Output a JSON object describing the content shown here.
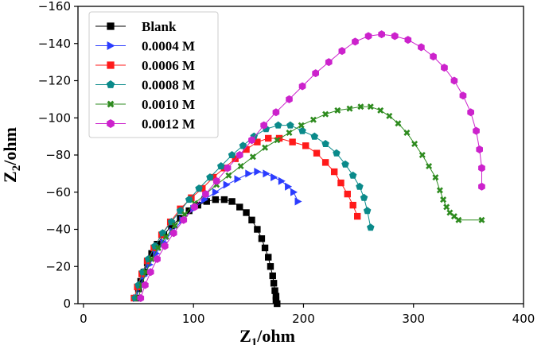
{
  "chart_data": {
    "type": "scatter",
    "title": "",
    "xlabel": "Z",
    "xlabel_sub": "1",
    "xlabel_unit": "/ohm",
    "ylabel": "Z",
    "ylabel_sub": "2",
    "ylabel_unit": "/ohm",
    "xlim": [
      -5,
      400
    ],
    "ylim": [
      0,
      -160
    ],
    "xticks": [
      0,
      100,
      200,
      300,
      400
    ],
    "xtick_labels": [
      "0",
      "100",
      "200",
      "300",
      "400"
    ],
    "yticks": [
      0,
      -20,
      -40,
      -60,
      -80,
      -100,
      -120,
      -140,
      -160
    ],
    "ytick_labels": [
      "0",
      "−20",
      "−40",
      "−60",
      "−80",
      "−100",
      "−120",
      "−140",
      "−160"
    ],
    "grid": false,
    "legend_position": "top-left",
    "series": [
      {
        "name": "Blank",
        "color": "#000000",
        "marker": "square",
        "x": [
          48,
          50,
          52,
          55,
          58,
          62,
          67,
          73,
          80,
          88,
          96,
          104,
          112,
          120,
          128,
          135,
          142,
          148,
          153,
          158,
          162,
          165,
          168,
          170,
          172,
          173,
          174,
          175,
          175,
          176
        ],
        "y": [
          -3,
          -8,
          -12,
          -17,
          -22,
          -27,
          -32,
          -37,
          -42,
          -46,
          -50,
          -53,
          -55,
          -56,
          -56,
          -55,
          -52,
          -49,
          -45,
          -40,
          -35,
          -30,
          -25,
          -20,
          -15,
          -11,
          -7,
          -4,
          -2,
          0
        ]
      },
      {
        "name": "0.0004 M",
        "color": "#2b3cff",
        "marker": "triangle-right",
        "x": [
          48,
          51,
          55,
          60,
          66,
          73,
          81,
          90,
          100,
          110,
          120,
          130,
          140,
          150,
          158,
          166,
          173,
          180,
          186,
          191,
          195
        ],
        "y": [
          -3,
          -9,
          -15,
          -21,
          -27,
          -33,
          -39,
          -45,
          -51,
          -56,
          -60,
          -64,
          -67,
          -70,
          -71,
          -70,
          -68,
          -66,
          -63,
          -60,
          -55
        ]
      },
      {
        "name": "0.0006 M",
        "color": "#ff1a1a",
        "marker": "square",
        "x": [
          46,
          49,
          53,
          58,
          64,
          71,
          79,
          88,
          98,
          108,
          118,
          128,
          138,
          148,
          158,
          168,
          178,
          190,
          202,
          212,
          220,
          228,
          234,
          240,
          245,
          249
        ],
        "y": [
          -3,
          -9,
          -16,
          -23,
          -30,
          -37,
          -44,
          -51,
          -57,
          -62,
          -68,
          -73,
          -78,
          -83,
          -87,
          -89,
          -89,
          -87,
          -85,
          -81,
          -76,
          -71,
          -65,
          -59,
          -53,
          -47
        ]
      },
      {
        "name": "0.0008 M",
        "color": "#0a8a8a",
        "marker": "pentagon",
        "x": [
          47,
          50,
          54,
          59,
          65,
          72,
          80,
          88,
          96,
          105,
          115,
          125,
          135,
          145,
          155,
          166,
          177,
          188,
          199,
          210,
          220,
          230,
          238,
          245,
          251,
          255,
          258,
          261
        ],
        "y": [
          -3,
          -10,
          -17,
          -24,
          -31,
          -38,
          -44,
          -50,
          -56,
          -62,
          -68,
          -74,
          -80,
          -85,
          -90,
          -94,
          -96,
          -96,
          -93,
          -90,
          -86,
          -81,
          -75,
          -69,
          -63,
          -57,
          -50,
          -41
        ]
      },
      {
        "name": "0.0010 M",
        "color": "#2e8b1f",
        "marker": "cross",
        "x": [
          50,
          53,
          57,
          62,
          68,
          75,
          83,
          92,
          101,
          111,
          121,
          132,
          143,
          154,
          165,
          176,
          187,
          198,
          209,
          220,
          231,
          242,
          252,
          261,
          270,
          278,
          286,
          294,
          301,
          308,
          314,
          320,
          324,
          327,
          330,
          333,
          337,
          341,
          362
        ],
        "y": [
          -3,
          -10,
          -17,
          -24,
          -30,
          -36,
          -42,
          -48,
          -54,
          -59,
          -64,
          -69,
          -74,
          -79,
          -84,
          -88,
          -92,
          -96,
          -99,
          -102,
          -104,
          -105,
          -106,
          -106,
          -104,
          -101,
          -97,
          -92,
          -86,
          -80,
          -74,
          -68,
          -61,
          -56,
          -52,
          -49,
          -47,
          -45,
          -45
        ]
      },
      {
        "name": "0.0012 M",
        "color": "#cc22cc",
        "marker": "hexagon",
        "x": [
          52,
          56,
          61,
          67,
          74,
          82,
          91,
          101,
          111,
          121,
          131,
          142,
          153,
          164,
          175,
          187,
          199,
          211,
          223,
          235,
          247,
          259,
          271,
          283,
          295,
          307,
          318,
          328,
          337,
          345,
          352,
          357,
          360,
          362,
          362
        ],
        "y": [
          -3,
          -10,
          -17,
          -24,
          -31,
          -38,
          -45,
          -52,
          -59,
          -66,
          -73,
          -80,
          -88,
          -96,
          -103,
          -110,
          -117,
          -124,
          -130,
          -136,
          -141,
          -144,
          -145,
          -144,
          -142,
          -138,
          -133,
          -127,
          -120,
          -112,
          -103,
          -93,
          -83,
          -73,
          -63
        ]
      }
    ]
  }
}
